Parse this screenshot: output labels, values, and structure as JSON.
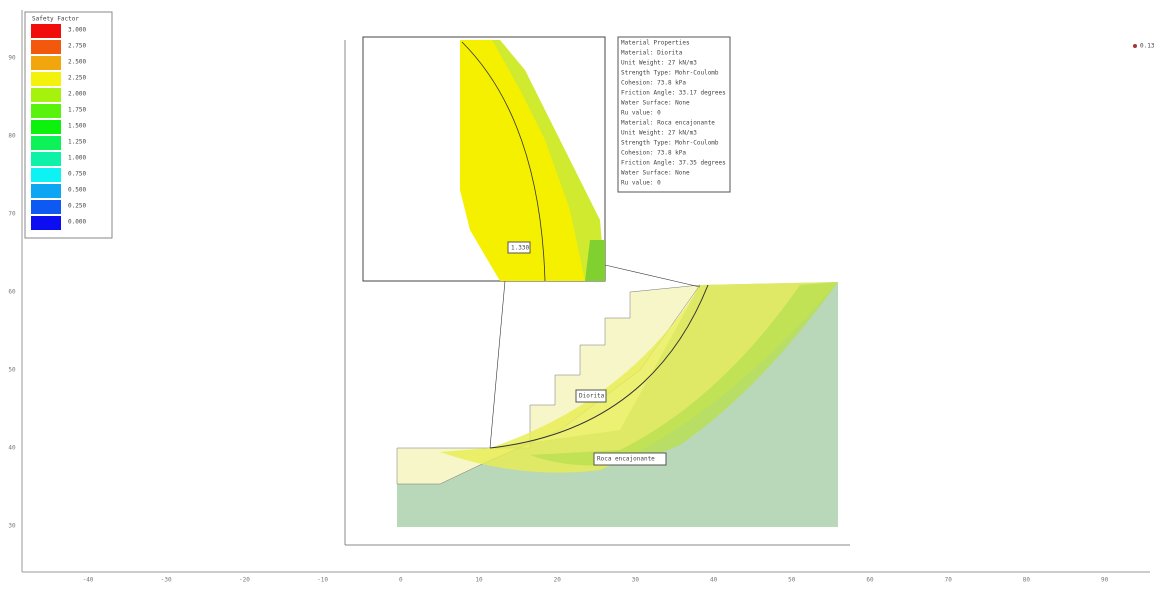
{
  "legend": {
    "title": "Safety Factor",
    "items": [
      "3.000",
      "2.750",
      "2.500",
      "2.250",
      "2.000",
      "1.750",
      "1.500",
      "1.250",
      "1.000",
      "0.750",
      "0.500",
      "0.250",
      "0.000"
    ]
  },
  "properties": [
    "Material Properties",
    "Material: Diorita",
    "Unit Weight: 27 kN/m3",
    "Strength Type: Mohr-Coulomb",
    "Cohesion: 73.8 kPa",
    "Friction Angle: 33.17 degrees",
    "Water Surface: None",
    "Ru value: 0",
    "Material: Roca encajonante",
    "Unit Weight: 27 kN/m3",
    "Strength Type: Mohr-Coulomb",
    "Cohesion: 73.8 kPa",
    "Friction Angle: 37.35 degrees",
    "Water Surface: None",
    "Ru value: 0"
  ],
  "labels": {
    "safety": "1.330",
    "material1": "Diorita",
    "material2": "Roca encajonante",
    "corner": "0.13"
  },
  "x_axis": [
    "-40",
    "-30",
    "-20",
    "-10",
    "0",
    "10",
    "20",
    "30",
    "40",
    "50",
    "60",
    "70",
    "80",
    "90"
  ],
  "y_axis": [
    "90",
    "80",
    "70",
    "60",
    "50",
    "40",
    "30"
  ]
}
